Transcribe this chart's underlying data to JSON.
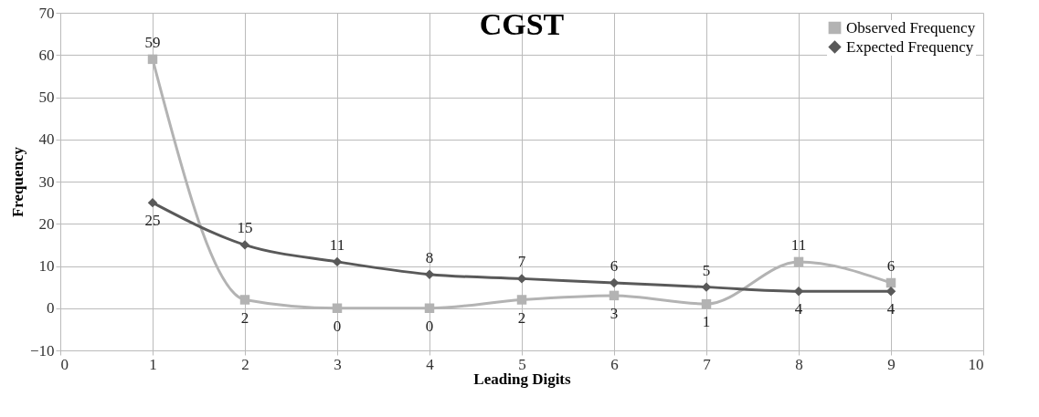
{
  "chart_data": {
    "type": "line",
    "title": "CGST",
    "xlabel": "Leading Digits",
    "ylabel": "Frequency",
    "x": [
      1,
      2,
      3,
      4,
      5,
      6,
      7,
      8,
      9
    ],
    "series": [
      {
        "name": "Observed Frequency",
        "color": "#b3b3b3",
        "marker": "square",
        "values": [
          59,
          2,
          0,
          0,
          2,
          3,
          1,
          11,
          6
        ]
      },
      {
        "name": "Expected Frequency",
        "color": "#595959",
        "marker": "diamond",
        "values": [
          25,
          15,
          11,
          8,
          7,
          6,
          5,
          4,
          4
        ]
      }
    ],
    "xlim": [
      0,
      10
    ],
    "xticks": [
      0,
      1,
      2,
      3,
      4,
      5,
      6,
      7,
      8,
      9,
      10
    ],
    "ylim": [
      -10,
      70
    ],
    "yticks": [
      -10,
      0,
      10,
      20,
      30,
      40,
      50,
      60,
      70
    ],
    "grid": true,
    "legend": "top right",
    "data_labels": true,
    "line_style": "solid"
  }
}
